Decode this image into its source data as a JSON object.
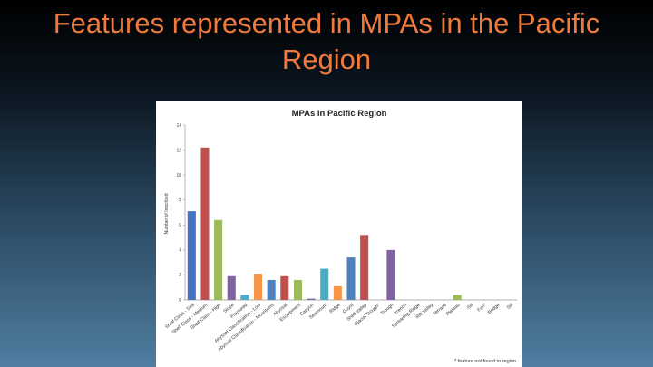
{
  "slide": {
    "title_line1": "Features represented in MPAs in the Pacific",
    "title_line2": "Region"
  },
  "chart_data": {
    "type": "bar",
    "title": "MPAs in Pacific Region",
    "ylabel": "Number of Inscribed",
    "footnote": "* feature not found in region",
    "ylim": [
      0,
      14
    ],
    "yticks": [
      0,
      2,
      4,
      6,
      8,
      10,
      12,
      14
    ],
    "categories": [
      "Shelf Class - Sea",
      "Shelf Class - Medium",
      "Shelf Class - High",
      "Slope",
      "Fractured",
      "Abyssal Classification - Low",
      "Abyssal Classification - Mountains",
      "Abyssal",
      "Escarpment",
      "Canyon",
      "Seamount",
      "Ridge",
      "Guyot",
      "Shelf Valley",
      "Glacial Trough*",
      "Trough",
      "Trench",
      "Spreading Ridge",
      "Rift Valley",
      "Terrace",
      "Plateau",
      "Sill",
      "Fan*",
      "Bridge",
      "Sill"
    ],
    "values": [
      7.1,
      12.2,
      6.4,
      1.9,
      0.4,
      2.1,
      1.6,
      1.9,
      1.6,
      0.1,
      2.5,
      1.1,
      3.4,
      5.2,
      0.0,
      4.0,
      0.0,
      0.0,
      0.0,
      0.0,
      0.4,
      0.0,
      0.0,
      0.0,
      0.0
    ],
    "colors": [
      "#4472c4",
      "#c0504d",
      "#9bbb59",
      "#8064a2",
      "#4bacc6",
      "#f79646",
      "#4f81bd",
      "#c0504d",
      "#9bbb59",
      "#8064a2",
      "#4bacc6",
      "#f79646",
      "#4f81bd",
      "#c0504d",
      "#9bbb59",
      "#8064a2",
      "#4bacc6",
      "#f79646",
      "#4f81bd",
      "#c0504d",
      "#9bbb59",
      "#8064a2",
      "#4bacc6",
      "#f79646",
      "#4f81bd"
    ],
    "grid": false
  }
}
